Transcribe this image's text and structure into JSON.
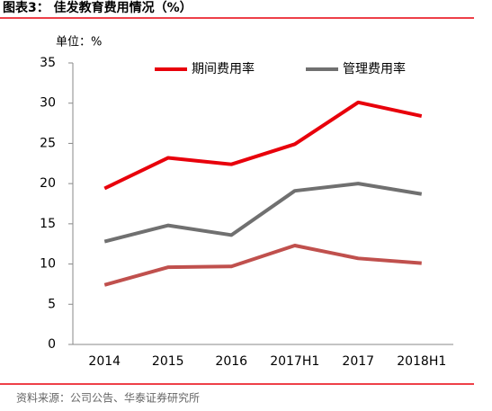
{
  "chart_data": {
    "type": "line",
    "title": "图表3：  佳发教育费用情况（%）",
    "unit_label": "单位：%",
    "source": "资料来源：公司公告、华泰证券研究所",
    "categories": [
      "2014",
      "2015",
      "2016",
      "2017H1",
      "2017",
      "2018H1"
    ],
    "series": [
      {
        "name": "期间费用率",
        "color": "#e8000b",
        "values": [
          19.4,
          23.2,
          22.4,
          24.9,
          30.1,
          28.4
        ]
      },
      {
        "name": "管理费用率",
        "color": "#707070",
        "values": [
          12.8,
          14.8,
          13.6,
          19.1,
          20.0,
          18.7
        ]
      },
      {
        "color": "#c0504d",
        "values": [
          7.4,
          9.6,
          9.7,
          12.3,
          10.7,
          10.1
        ]
      }
    ],
    "ylim": [
      0,
      35
    ],
    "yticks": [
      0,
      5,
      10,
      15,
      20,
      25,
      30,
      35
    ],
    "grid": false
  }
}
